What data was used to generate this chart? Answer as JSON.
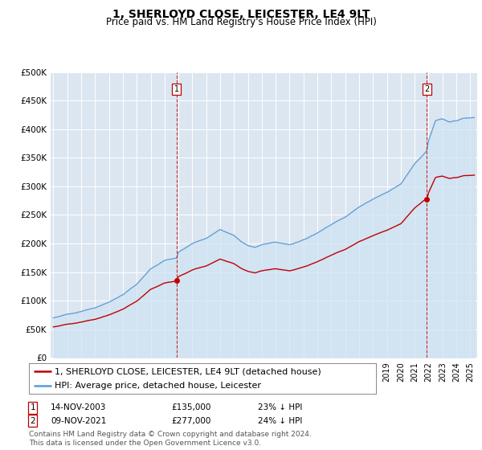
{
  "title": "1, SHERLOYD CLOSE, LEICESTER, LE4 9LT",
  "subtitle": "Price paid vs. HM Land Registry's House Price Index (HPI)",
  "legend_line1": "1, SHERLOYD CLOSE, LEICESTER, LE4 9LT (detached house)",
  "legend_line2": "HPI: Average price, detached house, Leicester",
  "annotation1_label": "1",
  "annotation1_date": "14-NOV-2003",
  "annotation1_price": "£135,000",
  "annotation1_hpi": "23% ↓ HPI",
  "annotation2_label": "2",
  "annotation2_date": "09-NOV-2021",
  "annotation2_price": "£277,000",
  "annotation2_hpi": "24% ↓ HPI",
  "footer": "Contains HM Land Registry data © Crown copyright and database right 2024.\nThis data is licensed under the Open Government Licence v3.0.",
  "ylim": [
    0,
    500000
  ],
  "yticks": [
    0,
    50000,
    100000,
    150000,
    200000,
    250000,
    300000,
    350000,
    400000,
    450000,
    500000
  ],
  "ytick_labels": [
    "£0",
    "£50K",
    "£100K",
    "£150K",
    "£200K",
    "£250K",
    "£300K",
    "£350K",
    "£400K",
    "£450K",
    "£500K"
  ],
  "xlim_start": 1994.8,
  "xlim_end": 2025.5,
  "hpi_color": "#5b9bd5",
  "hpi_fill_color": "#cfe2f3",
  "property_color": "#c00000",
  "marker1_x": 2003.87,
  "marker1_y": 135000,
  "marker2_x": 2021.87,
  "marker2_y": 277000,
  "bg_color": "#dce6f1",
  "grid_color": "#ffffff",
  "title_fontsize": 10,
  "subtitle_fontsize": 8.5,
  "tick_fontsize": 7.5,
  "legend_fontsize": 8,
  "footer_fontsize": 6.5
}
